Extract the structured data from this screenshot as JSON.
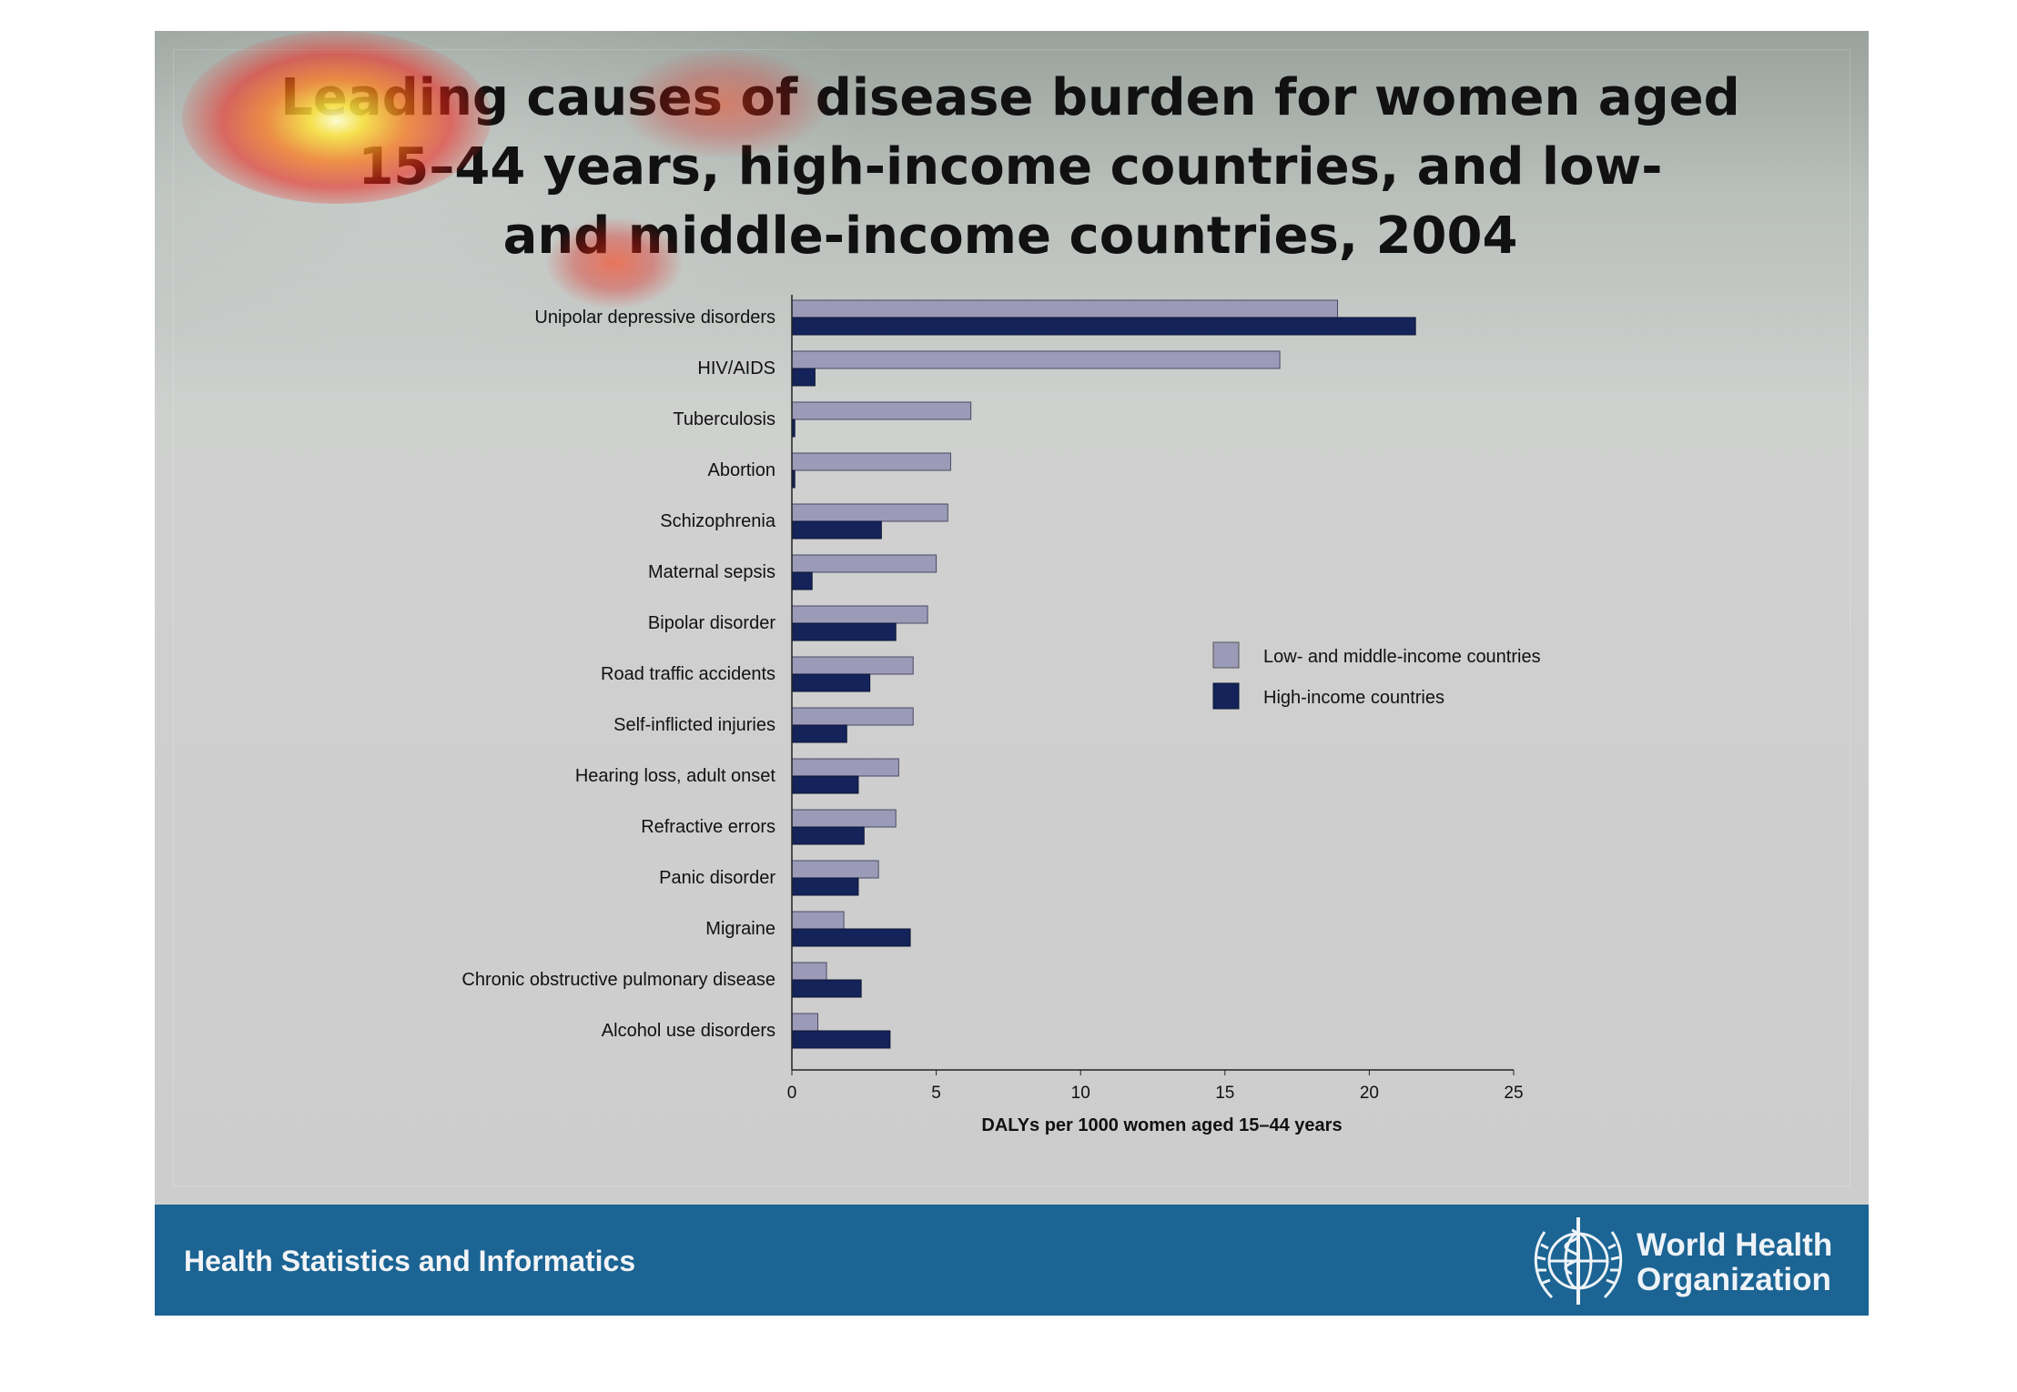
{
  "footer": {
    "left_text": "Health Statistics and Informatics",
    "org_name_line1": "World Health",
    "org_name_line2": "Organization",
    "emblem": "who-emblem-icon",
    "background_color": "#1b6493"
  },
  "chart_data": {
    "type": "bar",
    "orientation": "horizontal",
    "title": "Leading causes of disease burden for women aged 15–44 years, high-income countries, and low- and middle-income countries, 2004",
    "xlabel": "DALYs per 1000 women aged 15–44 years",
    "ylabel": "",
    "xlim": [
      0,
      25
    ],
    "xticks": [
      0,
      5,
      10,
      15,
      20,
      25
    ],
    "grid": false,
    "legend_position": "right",
    "categories": [
      "Unipolar depressive disorders",
      "HIV/AIDS",
      "Tuberculosis",
      "Abortion",
      "Schizophrenia",
      "Maternal sepsis",
      "Bipolar disorder",
      "Road traffic accidents",
      "Self-inflicted injuries",
      "Hearing loss, adult onset",
      "Refractive errors",
      "Panic disorder",
      "Migraine",
      "Chronic obstructive pulmonary disease",
      "Alcohol use disorders"
    ],
    "series": [
      {
        "name": "Low- and middle-income countries",
        "color": "#9b9bb8",
        "values": [
          18.9,
          16.9,
          6.2,
          5.5,
          5.4,
          5.0,
          4.7,
          4.2,
          4.2,
          3.7,
          3.6,
          3.0,
          1.8,
          1.2,
          0.9
        ]
      },
      {
        "name": "High-income countries",
        "color": "#14235a",
        "values": [
          21.6,
          0.8,
          0.1,
          0.1,
          3.1,
          0.7,
          3.6,
          2.7,
          1.9,
          2.3,
          2.5,
          2.3,
          4.1,
          2.4,
          3.4
        ]
      }
    ]
  }
}
